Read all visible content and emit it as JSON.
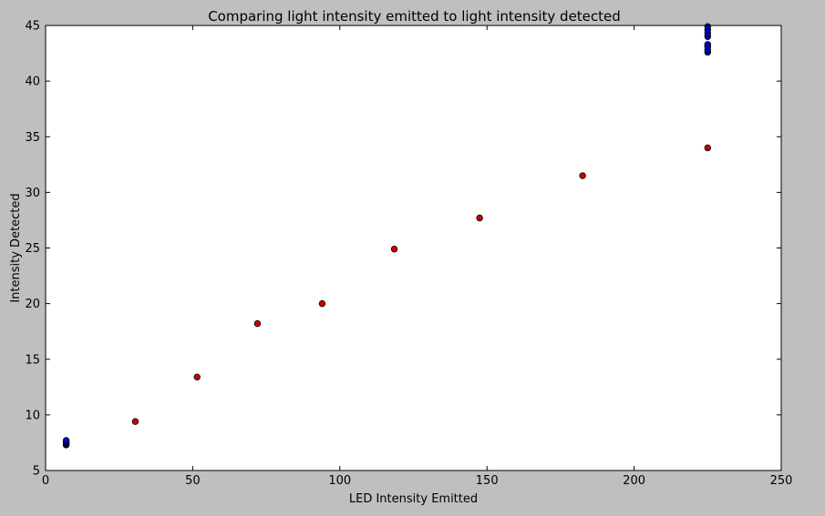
{
  "chart_data": {
    "type": "scatter",
    "title": "Comparing light intensity emitted to light intensity detected",
    "xlabel": "LED Intensity Emitted",
    "ylabel": "Intensity Detected",
    "xlim": [
      0,
      250
    ],
    "ylim": [
      5,
      45
    ],
    "xticks": [
      0,
      50,
      100,
      150,
      200,
      250
    ],
    "yticks": [
      5,
      10,
      15,
      20,
      25,
      30,
      35,
      40,
      45
    ],
    "grid": false,
    "background": "#bfbfbf",
    "plot_background": "#ffffff",
    "series": [
      {
        "color": "#cc0000",
        "x": [
          30.5,
          51.5,
          72,
          94,
          118.5,
          147.5,
          182.5,
          225
        ],
        "y": [
          9.4,
          13.4,
          18.2,
          20.0,
          24.9,
          27.7,
          31.5,
          34.0
        ]
      },
      {
        "color": "#0000cc",
        "x": [
          7,
          7,
          7,
          7,
          7,
          225,
          225,
          225,
          225,
          225,
          225,
          225,
          225
        ],
        "y": [
          7.3,
          7.4,
          7.5,
          7.6,
          7.7,
          42.6,
          42.8,
          43.1,
          43.3,
          44.0,
          44.3,
          44.6,
          44.9
        ]
      }
    ]
  }
}
